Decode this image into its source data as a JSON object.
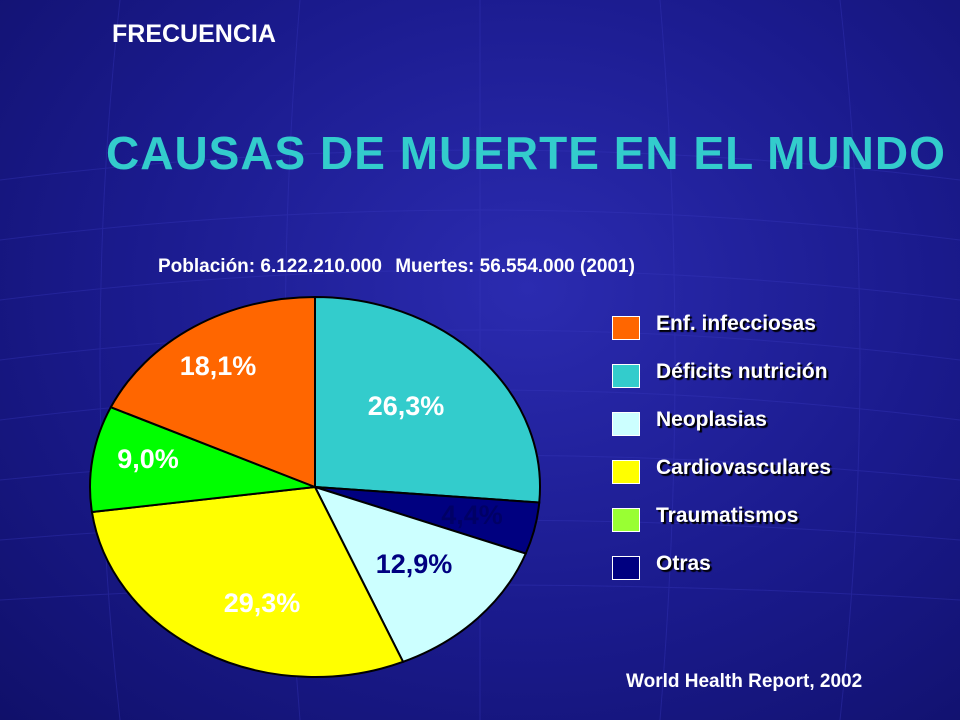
{
  "header": {
    "section": "FRECUENCIA",
    "title": "CAUSAS DE MUERTE EN EL MUNDO"
  },
  "subtitle": {
    "poblacion": "Población: 6.122.210.000",
    "muertes": "Muertes: 56.554.000 (2001)"
  },
  "source": "World Health Report, 2002",
  "chart_data": {
    "type": "pie",
    "title": "CAUSAS DE MUERTE EN EL MUNDO",
    "subtitle": "Población: 6.122.210.000  Muertes: 56.554.000 (2001)",
    "start": "12 o'clock, clockwise",
    "legend_position": "right",
    "slices": [
      {
        "label": "Déficits nutrición",
        "value": 26.3,
        "text": "26,3%",
        "color": "#33cccc",
        "label_color": "#ffffff"
      },
      {
        "label": "Otras",
        "value": 4.4,
        "text": "4,4%",
        "color": "#000080",
        "label_color": "#000066"
      },
      {
        "label": "Neoplasias",
        "value": 12.9,
        "text": "12,9%",
        "color": "#ccffff",
        "label_color": "#000080"
      },
      {
        "label": "Cardiovasculares",
        "value": 29.3,
        "text": "29,3%",
        "color": "#ffff00",
        "label_color": "#ffffff"
      },
      {
        "label": "Traumatismos",
        "value": 9.0,
        "text": "9,0%",
        "color": "#00ff00",
        "label_color": "#ffffff"
      },
      {
        "label": "Enf. infecciosas",
        "value": 18.1,
        "text": "18,1%",
        "color": "#ff6600",
        "label_color": "#ffffff"
      }
    ],
    "legend": [
      {
        "label": "Enf. infecciosas",
        "color": "#ff6600"
      },
      {
        "label": "Déficits nutrición",
        "color": "#33cccc"
      },
      {
        "label": "Neoplasias",
        "color": "#ccffff"
      },
      {
        "label": "Cardiovasculares",
        "color": "#ffff00"
      },
      {
        "label": "Traumatismos",
        "color": "#99ff33"
      },
      {
        "label": "Otras",
        "color": "#000080"
      }
    ]
  }
}
